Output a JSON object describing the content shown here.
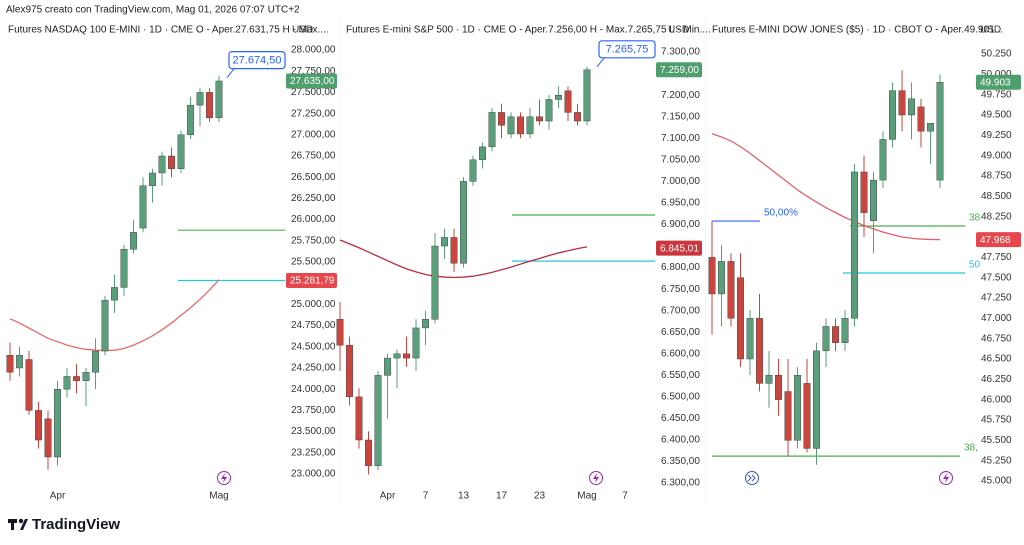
{
  "header": "Alex975 creato con TradingView.com, Mag 01, 2026 07:07 UTC+2",
  "brand": "TradingView",
  "chart_data": [
    {
      "type": "candlestick",
      "title": "Futures NASDAQ 100 E-MINI · 1D · CME  O - Aper.27.631,75  H - Max....",
      "currency": "USD",
      "categories": [
        null,
        null,
        null,
        null,
        null,
        "Apr",
        null,
        null,
        null,
        null,
        null,
        null,
        null,
        null,
        null,
        null,
        null,
        null,
        null,
        null,
        null,
        null,
        "Mag"
      ],
      "open": [
        24400,
        24250,
        24350,
        23750,
        23650,
        23200,
        24000,
        24150,
        24100,
        24200,
        24450,
        25050,
        25200,
        25650,
        25900,
        26400,
        26550,
        26750,
        26600,
        27000,
        27350,
        27500,
        27200
      ],
      "high": [
        24550,
        24500,
        24450,
        23850,
        23750,
        24100,
        24250,
        24300,
        24250,
        24600,
        25100,
        25350,
        25700,
        26000,
        26500,
        26600,
        26800,
        26850,
        27050,
        27450,
        27550,
        27550,
        27700
      ],
      "low": [
        24100,
        24150,
        23700,
        23300,
        23050,
        23100,
        23900,
        23950,
        23800,
        24000,
        24400,
        24900,
        25100,
        25600,
        25850,
        26200,
        26400,
        26500,
        26550,
        26950,
        27100,
        27150,
        27150
      ],
      "close": [
        24200,
        24400,
        23750,
        23400,
        23200,
        24000,
        24150,
        24100,
        24200,
        24450,
        25050,
        25200,
        25650,
        25850,
        26400,
        26550,
        26750,
        26600,
        27000,
        27350,
        27500,
        27200,
        27635
      ],
      "up_color": "#5a9e7c",
      "down_color": "#c9463f",
      "ma": {
        "color": "#e86a6a",
        "values": [
          24830,
          24780,
          24720,
          24660,
          24600,
          24560,
          24520,
          24490,
          24470,
          24460,
          24455,
          24460,
          24480,
          24520,
          24570,
          24630,
          24700,
          24780,
          24870,
          24960,
          25060,
          25170,
          25290
        ]
      },
      "ylim": [
        22811,
        28413
      ],
      "yticks": [
        {
          "value": 28000,
          "label": "28.000,00"
        },
        {
          "value": 27750,
          "label": "27.750,00"
        },
        {
          "value": 27500,
          "label": "27.500,00"
        },
        {
          "value": 27250,
          "label": "27.250,00"
        },
        {
          "value": 27000,
          "label": "27.000,00"
        },
        {
          "value": 26750,
          "label": "26.750,00"
        },
        {
          "value": 26500,
          "label": "26.500,00"
        },
        {
          "value": 26250,
          "label": "26.250,00"
        },
        {
          "value": 26000,
          "label": "26.000,00"
        },
        {
          "value": 25750,
          "label": "25.750,00"
        },
        {
          "value": 25500,
          "label": "25.500,00"
        },
        {
          "value": 25250,
          "label": "25.250,00"
        },
        {
          "value": 25000,
          "label": "25.000,00"
        },
        {
          "value": 24750,
          "label": "24.750,00"
        },
        {
          "value": 24500,
          "label": "24.500,00"
        },
        {
          "value": 24250,
          "label": "24.250,00"
        },
        {
          "value": 24000,
          "label": "24.000,00"
        },
        {
          "value": 23750,
          "label": "23.750,00"
        },
        {
          "value": 23500,
          "label": "23.500,00"
        },
        {
          "value": 23250,
          "label": "23.250,00"
        },
        {
          "value": 23000,
          "label": "23.000,00"
        }
      ],
      "levels": [
        {
          "value": 25875,
          "color": "#4caf50"
        },
        {
          "value": 25281.79,
          "color": "#26c6da"
        }
      ],
      "price_labels": [
        {
          "value": 27674.5,
          "label": "27.674,50",
          "color": "#2962ff",
          "style": "callout"
        },
        {
          "value": 27635,
          "label": "27.635,00",
          "color": "#4e9e6e",
          "style": "box"
        },
        {
          "value": 25281.79,
          "label": "25.281,79",
          "color": "#e5474d",
          "style": "box"
        }
      ]
    },
    {
      "type": "candlestick",
      "title": "Futures E-mini S&P 500 · 1D · CME  O - Aper.7.256,00  H - Max.7.265,75  L - Min....",
      "currency": "USD",
      "categories": [
        null,
        null,
        null,
        null,
        null,
        "Apr",
        null,
        null,
        null,
        "7",
        null,
        null,
        null,
        "13",
        null,
        null,
        null,
        "17",
        null,
        null,
        null,
        "23",
        null,
        null,
        null,
        null,
        "Mag",
        null,
        null,
        null,
        "7"
      ],
      "open": [
        6680,
        6620,
        6500,
        6400,
        6340,
        6550,
        6590,
        6600,
        6590,
        6660,
        6680,
        6850,
        6870,
        6810,
        7000,
        7050,
        7080,
        7160,
        7110,
        7150,
        7110,
        7150,
        7140,
        7190,
        7210,
        7160,
        7140,
        null,
        null,
        null,
        null
      ],
      "high": [
        6720,
        6640,
        6520,
        6420,
        6560,
        6600,
        6610,
        6640,
        6680,
        6700,
        6880,
        6890,
        6890,
        7010,
        7060,
        7090,
        7170,
        7180,
        7160,
        7160,
        7170,
        7190,
        7200,
        7220,
        7220,
        7180,
        7266,
        null,
        null,
        null,
        null
      ],
      "low": [
        6560,
        6480,
        6380,
        6320,
        6330,
        6450,
        6520,
        6570,
        6560,
        6620,
        6670,
        6820,
        6790,
        6800,
        6990,
        7030,
        7070,
        7100,
        7100,
        7100,
        7100,
        7130,
        7120,
        7170,
        7140,
        7130,
        7130,
        null,
        null,
        null,
        null
      ],
      "close": [
        6620,
        6500,
        6400,
        6340,
        6550,
        6590,
        6600,
        6590,
        6660,
        6680,
        6850,
        6870,
        6810,
        7000,
        7050,
        7080,
        7160,
        7130,
        7150,
        7110,
        7150,
        7140,
        7190,
        7200,
        7160,
        7140,
        7259,
        null,
        null,
        null,
        null
      ],
      "up_color": "#5a9e7c",
      "down_color": "#c9463f",
      "ma": {
        "color": "#b5303d",
        "values": [
          6864,
          6855,
          6846,
          6836,
          6826,
          6816,
          6806,
          6797,
          6790,
          6784,
          6780,
          6778,
          6777,
          6778,
          6780,
          6784,
          6789,
          6795,
          6801,
          6808,
          6815,
          6821,
          6828,
          6834,
          6839,
          6844,
          6848,
          null,
          null,
          null,
          null
        ]
      },
      "ylim": [
        6284,
        7386
      ],
      "yticks": [
        {
          "value": 7300,
          "label": "7.300,00"
        },
        {
          "value": 7250,
          "label": "7.250,00"
        },
        {
          "value": 7200,
          "label": "7.200,00"
        },
        {
          "value": 7150,
          "label": "7.150,00"
        },
        {
          "value": 7100,
          "label": "7.100,00"
        },
        {
          "value": 7050,
          "label": "7.050,00"
        },
        {
          "value": 7000,
          "label": "7.000,00"
        },
        {
          "value": 6950,
          "label": "6.950,00"
        },
        {
          "value": 6900,
          "label": "6.900,00"
        },
        {
          "value": 6850,
          "label": "6.850,00"
        },
        {
          "value": 6800,
          "label": "6.800,00"
        },
        {
          "value": 6750,
          "label": "6.750,00"
        },
        {
          "value": 6700,
          "label": "6.700,00"
        },
        {
          "value": 6650,
          "label": "6.650,00"
        },
        {
          "value": 6600,
          "label": "6.600,00"
        },
        {
          "value": 6550,
          "label": "6.550,00"
        },
        {
          "value": 6500,
          "label": "6.500,00"
        },
        {
          "value": 6450,
          "label": "6.450,00"
        },
        {
          "value": 6400,
          "label": "6.400,00"
        },
        {
          "value": 6350,
          "label": "6.350,00"
        },
        {
          "value": 6300,
          "label": "6.300,00"
        }
      ],
      "levels": [
        {
          "value": 6922,
          "color": "#4caf50"
        },
        {
          "value": 6815,
          "color": "#26c6da"
        }
      ],
      "price_labels": [
        {
          "value": 7265.75,
          "label": "7.265,75",
          "color": "#2962ff",
          "style": "callout"
        },
        {
          "value": 7259,
          "label": "7.259,00",
          "color": "#4e9e6e",
          "style": "box"
        },
        {
          "value": 6845.01,
          "label": "6.845,01",
          "color": "#c9363e",
          "style": "box"
        }
      ]
    },
    {
      "type": "candlestick",
      "title": "Futures E-MINI DOW JONES ($5) · 1D · CBOT  O - Aper.49.901...",
      "currency": "USD",
      "categories": [
        null,
        null,
        null,
        null,
        null,
        null,
        null,
        null,
        null,
        null,
        null,
        null,
        null,
        null,
        null,
        null,
        null,
        null,
        null,
        null,
        null,
        null,
        null,
        null,
        null
      ],
      "open": [
        47750,
        47300,
        47700,
        47500,
        46500,
        47000,
        46200,
        46300,
        46100,
        45500,
        46200,
        45400,
        46600,
        46900,
        46700,
        47000,
        48800,
        48200,
        48700,
        49200,
        49800,
        49500,
        49600,
        49300,
        48700
      ],
      "high": [
        48200,
        47900,
        47800,
        47800,
        47100,
        47300,
        46600,
        46500,
        46500,
        46400,
        46500,
        46700,
        47000,
        47000,
        47100,
        48900,
        49000,
        48800,
        49300,
        49900,
        50050,
        49900,
        49700,
        49400,
        50000
      ],
      "low": [
        46800,
        46900,
        46900,
        46400,
        46300,
        46100,
        45900,
        45800,
        45300,
        45400,
        45350,
        45200,
        46400,
        46600,
        46600,
        46900,
        48000,
        47800,
        48600,
        49100,
        49300,
        49200,
        49100,
        48900,
        48600
      ],
      "close": [
        47300,
        47700,
        47000,
        46500,
        47000,
        46200,
        46300,
        46000,
        45500,
        46300,
        45400,
        46600,
        46900,
        46700,
        47000,
        48800,
        48300,
        48700,
        49200,
        49800,
        49500,
        49700,
        49300,
        49400,
        49903
      ],
      "up_color": "#5a9e7c",
      "down_color": "#c9463f",
      "ma": {
        "color": "#e0636b",
        "values": [
          49270,
          49230,
          49180,
          49110,
          49030,
          48940,
          48850,
          48760,
          48670,
          48580,
          48500,
          48430,
          48360,
          48300,
          48240,
          48190,
          48140,
          48100,
          48060,
          48030,
          48000,
          47985,
          47975,
          47970,
          47968
        ]
      },
      "ylim": [
        44889,
        50730
      ],
      "yticks": [
        {
          "value": 50250,
          "label": "50.250"
        },
        {
          "value": 50000,
          "label": "50.000"
        },
        {
          "value": 49750,
          "label": "49.750"
        },
        {
          "value": 49500,
          "label": "49.500"
        },
        {
          "value": 49250,
          "label": "49.250"
        },
        {
          "value": 49000,
          "label": "49.000"
        },
        {
          "value": 48750,
          "label": "48.750"
        },
        {
          "value": 48500,
          "label": "48.500"
        },
        {
          "value": 48250,
          "label": "48.250"
        },
        {
          "value": 48000,
          "label": "48.000"
        },
        {
          "value": 47750,
          "label": "47.750"
        },
        {
          "value": 47500,
          "label": "47.500"
        },
        {
          "value": 47250,
          "label": "47.250"
        },
        {
          "value": 47000,
          "label": "47.000"
        },
        {
          "value": 46750,
          "label": "46.750"
        },
        {
          "value": 46500,
          "label": "46.500"
        },
        {
          "value": 46250,
          "label": "46.250"
        },
        {
          "value": 46000,
          "label": "46.000"
        },
        {
          "value": 45750,
          "label": "45.750"
        },
        {
          "value": 45500,
          "label": "45.500"
        },
        {
          "value": 45250,
          "label": "45.250"
        },
        {
          "value": 45000,
          "label": "45.000"
        }
      ],
      "levels": [
        {
          "value": 48196,
          "color": "#2962ff",
          "label": "50,00%"
        },
        {
          "value": 48135,
          "color": "#4caf50",
          "label": "38"
        },
        {
          "value": 47557,
          "color": "#26c6da",
          "label": "50"
        },
        {
          "value": 45306,
          "color": "#4caf50",
          "label": "38,"
        }
      ],
      "price_labels": [
        {
          "value": 49903,
          "label": "49.903",
          "color": "#4e9e6e",
          "style": "box"
        },
        {
          "value": 47968,
          "label": "47.968",
          "color": "#e5474d",
          "style": "box"
        }
      ]
    }
  ]
}
